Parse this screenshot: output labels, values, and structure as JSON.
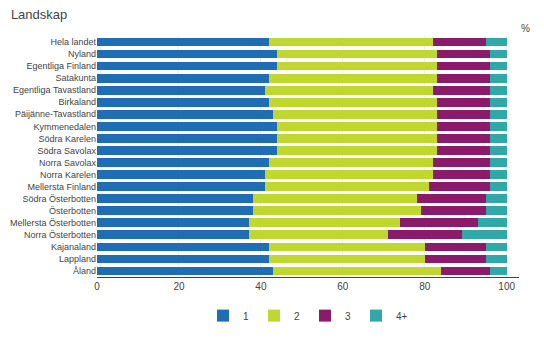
{
  "chart_data": {
    "type": "bar",
    "orientation": "horizontal",
    "stacked": true,
    "title": "Landskap",
    "categories": [
      "Hela landet",
      "Nyland",
      "Egentliga Finland",
      "Satakunta",
      "Egentliga Tavastland",
      "Birkaland",
      "Päijänne-Tavastland",
      "Kymmenedalen",
      "Södra Karelen",
      "Södra Savolax",
      "Norra Savolax",
      "Norra Karelen",
      "Mellersta Finland",
      "Södra Österbotten",
      "Österbotten",
      "Mellersta Österbotten",
      "Norra Österbotten",
      "Kajanaland",
      "Lappland",
      "Åland"
    ],
    "series": [
      {
        "name": "1",
        "color": "#1F6EB5",
        "values": [
          42,
          44,
          44,
          42,
          41,
          42,
          43,
          44,
          44,
          44,
          42,
          41,
          41,
          38,
          38,
          37,
          37,
          42,
          42,
          43
        ]
      },
      {
        "name": "2",
        "color": "#C0D730",
        "values": [
          40,
          39,
          39,
          41,
          41,
          41,
          40,
          39,
          39,
          39,
          40,
          41,
          40,
          40,
          41,
          37,
          34,
          38,
          38,
          41
        ]
      },
      {
        "name": "3",
        "color": "#8B1A6B",
        "values": [
          13,
          13,
          13,
          13,
          14,
          13,
          13,
          13,
          13,
          13,
          14,
          14,
          15,
          17,
          16,
          19,
          18,
          15,
          15,
          12
        ]
      },
      {
        "name": "4+",
        "color": "#30A8A8",
        "values": [
          5,
          4,
          4,
          4,
          4,
          4,
          4,
          4,
          4,
          4,
          4,
          4,
          4,
          5,
          5,
          7,
          11,
          5,
          5,
          4
        ]
      }
    ],
    "xlim": [
      0,
      103
    ],
    "xticks": [
      0,
      20,
      40,
      60,
      80,
      100
    ],
    "grid": true,
    "legend": "bottom",
    "annotations": [
      {
        "text": "%"
      }
    ]
  }
}
